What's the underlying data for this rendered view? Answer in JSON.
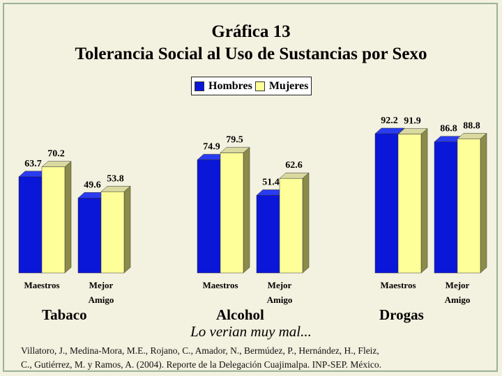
{
  "title_line1": "Gráfica 13",
  "title_line2": "Tolerancia Social al Uso de Sustancias por Sexo",
  "subtitle": "Lo verian muy mal...",
  "citation_line1": "Villatoro, J., Medina-Mora, M.E., Rojano, C., Amador, N., Bermúdez, P., Hernández, H., Fleiz,",
  "citation_line2": "C., Gutiérrez, M. y Ramos, A. (2004). Reporte de la Delegación Cuajimalpa. INP-SEP. México.",
  "colors": {
    "hombres": "#0a16d8",
    "mujeres": "#ffff99",
    "background": "#f3f1df"
  },
  "chart_data": {
    "type": "bar",
    "legend_placement": "top-center",
    "grid": false,
    "ylim": [
      0,
      100
    ],
    "series": [
      {
        "name": "Hombres",
        "values": [
          63.7,
          49.6,
          74.9,
          51.4,
          92.2,
          86.8
        ]
      },
      {
        "name": "Mujeres",
        "values": [
          70.2,
          53.8,
          79.5,
          62.6,
          91.9,
          88.8
        ]
      }
    ],
    "groups": [
      {
        "name": "Tabaco",
        "categories": [
          "Maestros",
          "Mejor Amigo"
        ]
      },
      {
        "name": "Alcohol",
        "categories": [
          "Maestros",
          "Mejor Amigo"
        ]
      },
      {
        "name": "Drogas",
        "categories": [
          "Maestros",
          "Mejor Amigo"
        ]
      }
    ],
    "category_labels": [
      {
        "line1": "Maestros",
        "line2": ""
      },
      {
        "line1": "Mejor",
        "line2": "Amigo"
      },
      {
        "line1": "Maestros",
        "line2": ""
      },
      {
        "line1": "Mejor",
        "line2": "Amigo"
      },
      {
        "line1": "Maestros",
        "line2": ""
      },
      {
        "line1": "Mejor",
        "line2": "Amigo"
      }
    ]
  }
}
